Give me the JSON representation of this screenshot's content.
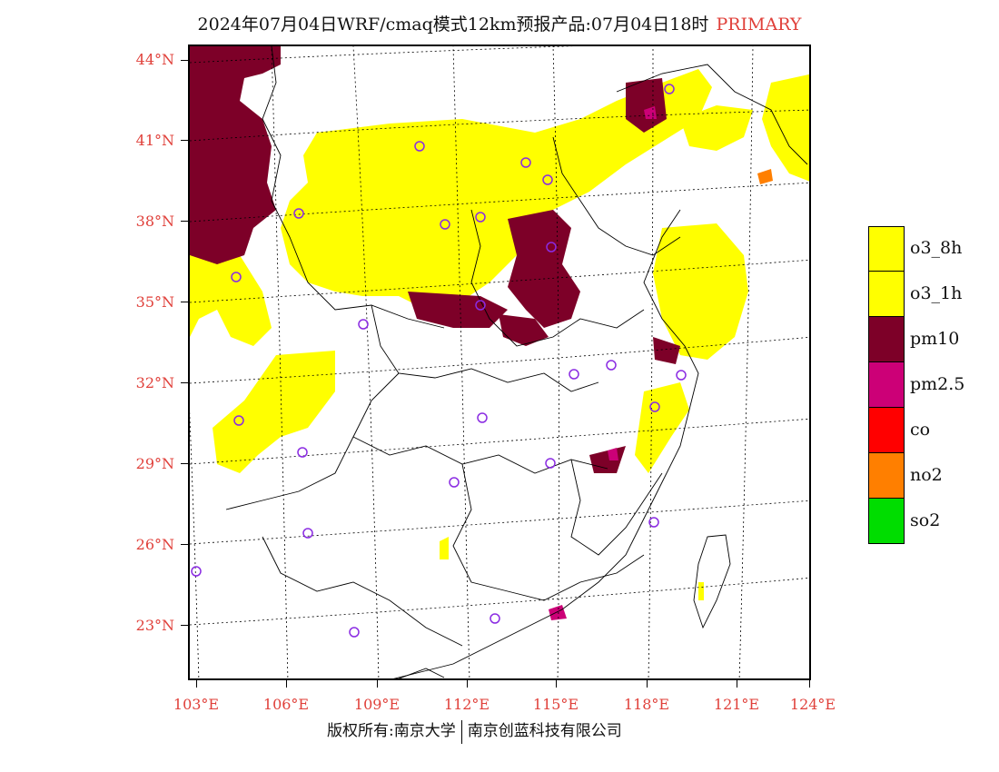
{
  "title": {
    "main": "2024年07月04日WRF/cmaq模式12km预报产品:07月04日18时",
    "tag": "PRIMARY"
  },
  "colors": {
    "o3_8h": "#ffff00",
    "o3_1h": "#ffff00",
    "pm10": "#7d0028",
    "pm2_5": "#cc0077",
    "co": "#ff0000",
    "no2": "#ff7f00",
    "so2": "#00dd00",
    "axis_label": "#e0403a",
    "station": "#8a2be2"
  },
  "lat_labels": [
    "44°N",
    "41°N",
    "38°N",
    "35°N",
    "32°N",
    "29°N",
    "26°N",
    "23°N"
  ],
  "lon_labels": [
    "103°E",
    "106°E",
    "109°E",
    "112°E",
    "115°E",
    "118°E",
    "121°E",
    "124°E"
  ],
  "legend": [
    {
      "key": "o3_8h",
      "label": "o3_8h"
    },
    {
      "key": "o3_1h",
      "label": "o3_1h"
    },
    {
      "key": "pm10",
      "label": "pm10"
    },
    {
      "key": "pm2_5",
      "label": "pm2.5"
    },
    {
      "key": "co",
      "label": "co"
    },
    {
      "key": "no2",
      "label": "no2"
    },
    {
      "key": "so2",
      "label": "so2"
    }
  ],
  "footer": {
    "left": "版权所有:南京大学",
    "right": "南京创蓝科技有限公司"
  }
}
